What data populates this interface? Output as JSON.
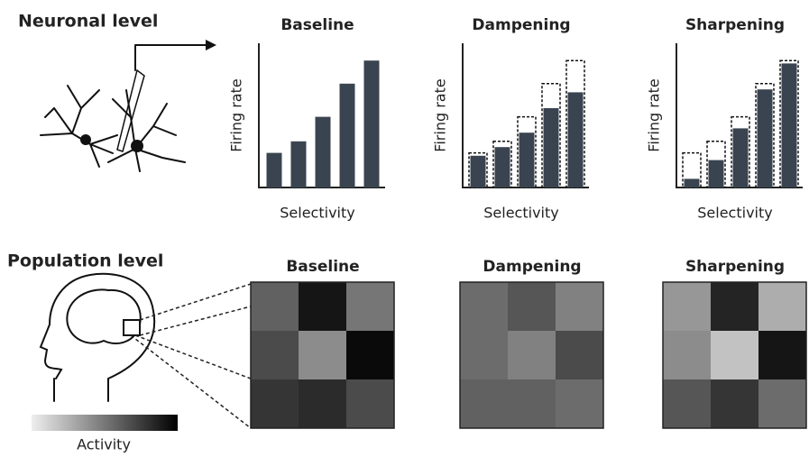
{
  "neuronal": {
    "title": "Neuronal level",
    "ylim": [
      0,
      100
    ],
    "panels": [
      {
        "title": "Baseline",
        "y_label": "Firing rate",
        "x_label": "Selectivity",
        "values": [
          24,
          32,
          49,
          72,
          88
        ]
      },
      {
        "title": "Dampening",
        "y_label": "Firing rate",
        "x_label": "Selectivity",
        "values": [
          22,
          28,
          38,
          55,
          66
        ]
      },
      {
        "title": "Sharpening",
        "y_label": "Firing rate",
        "x_label": "Selectivity",
        "values": [
          6,
          19,
          41,
          68,
          86
        ]
      }
    ]
  },
  "population": {
    "title": "Population level",
    "colorbar_label": "Activity",
    "activity_range": [
      0,
      100
    ],
    "panels": [
      {
        "title": "Baseline",
        "cells": [
          [
            60,
            95,
            50
          ],
          [
            70,
            40,
            100
          ],
          [
            80,
            85,
            70
          ]
        ]
      },
      {
        "title": "Dampening",
        "cells": [
          [
            55,
            65,
            45
          ],
          [
            55,
            45,
            70
          ],
          [
            60,
            60,
            55
          ]
        ]
      },
      {
        "title": "Sharpening",
        "cells": [
          [
            35,
            88,
            25
          ],
          [
            40,
            15,
            95
          ],
          [
            65,
            80,
            55
          ]
        ]
      }
    ]
  }
}
